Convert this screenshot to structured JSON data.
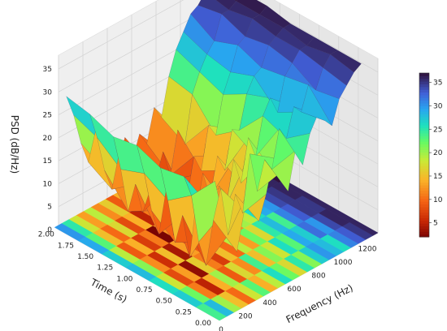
{
  "chart_data": {
    "type": "surface3d",
    "title": "",
    "xlabel": "Frequency (Hz)",
    "ylabel": "Time (s)",
    "zlabel": "PSD (dB/Hz)",
    "x_ticks": [
      "0",
      "200",
      "400",
      "600",
      "800",
      "1000",
      "1200"
    ],
    "y_ticks": [
      "0.00",
      "0.25",
      "0.50",
      "0.75",
      "1.00",
      "1.25",
      "1.50",
      "1.75",
      "2.00"
    ],
    "z_ticks": [
      "0",
      "5",
      "10",
      "15",
      "20",
      "25",
      "30",
      "35"
    ],
    "xlim": [
      0,
      1300
    ],
    "ylim": [
      0,
      2.05
    ],
    "zlim": [
      0,
      38
    ],
    "colorbar": {
      "ticks": [
        "5",
        "10",
        "15",
        "20",
        "25",
        "30",
        "35"
      ],
      "min": 2,
      "max": 37,
      "colormap": "turbo_r"
    },
    "time_rows": [
      0.15,
      0.45,
      0.75,
      1.05,
      1.35,
      1.65,
      1.95
    ],
    "frequencies_hz": [
      0,
      60,
      120,
      180,
      240,
      300,
      360,
      420,
      480,
      540,
      600,
      660,
      720,
      780,
      840,
      900,
      960,
      1020,
      1080,
      1140,
      1200,
      1260
    ],
    "psd_rows": [
      [
        24,
        28,
        20,
        15,
        10,
        18,
        23,
        14,
        19,
        26,
        22,
        17,
        25,
        21,
        27,
        30,
        28,
        26,
        31,
        33,
        35,
        36
      ],
      [
        27,
        22,
        11,
        5,
        14,
        20,
        9,
        17,
        12,
        24,
        15,
        21,
        18,
        26,
        23,
        29,
        27,
        32,
        30,
        34,
        36,
        36
      ],
      [
        26,
        18,
        8,
        13,
        3,
        16,
        11,
        7,
        15,
        10,
        19,
        13,
        22,
        17,
        25,
        28,
        24,
        31,
        33,
        35,
        35,
        36
      ],
      [
        28,
        21,
        12,
        6,
        15,
        4,
        13,
        9,
        5,
        14,
        8,
        16,
        12,
        20,
        19,
        26,
        29,
        30,
        34,
        35,
        36,
        36
      ],
      [
        27,
        19,
        9,
        14,
        7,
        11,
        2,
        12,
        6,
        10,
        4,
        13,
        9,
        18,
        15,
        23,
        27,
        32,
        33,
        36,
        36,
        37
      ],
      [
        29,
        23,
        15,
        10,
        17,
        8,
        14,
        5,
        11,
        7,
        12,
        6,
        15,
        11,
        21,
        25,
        28,
        30,
        35,
        35,
        36,
        37
      ],
      [
        30,
        25,
        18,
        13,
        19,
        12,
        16,
        9,
        14,
        8,
        13,
        10,
        17,
        14,
        22,
        27,
        30,
        33,
        34,
        36,
        37,
        37
      ]
    ],
    "grid": true,
    "colorbar_position": "right"
  }
}
